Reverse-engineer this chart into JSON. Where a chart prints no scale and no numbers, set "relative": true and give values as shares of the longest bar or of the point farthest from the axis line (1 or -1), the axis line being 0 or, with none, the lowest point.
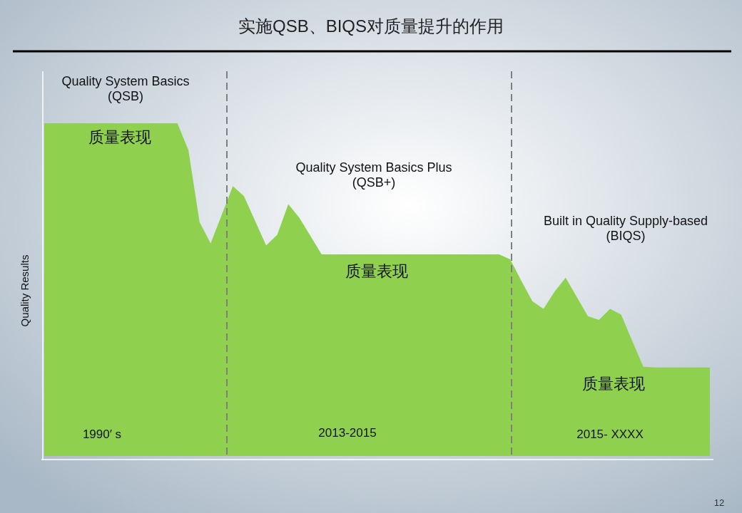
{
  "chart_data": {
    "type": "area",
    "title": "实施QSB、BIQS对质量提升的作用",
    "ylabel": "Quality Results",
    "relative": true,
    "categories": [
      null,
      null,
      null,
      null,
      null,
      null,
      null,
      null,
      null,
      null,
      null,
      null,
      null,
      null,
      null,
      null,
      null,
      null,
      null,
      null,
      null,
      null,
      null,
      null,
      null,
      null,
      null,
      null,
      null,
      null,
      null,
      null,
      null,
      null,
      null,
      null,
      null,
      null,
      null,
      null,
      null,
      null,
      null,
      null,
      null,
      null,
      null,
      null,
      null,
      null,
      null,
      null,
      null,
      null,
      null,
      null,
      null,
      null,
      null,
      null,
      null
    ],
    "series": [
      {
        "color": "#8fd14f",
        "values": [
          1,
          1,
          1,
          1,
          1,
          1,
          1,
          1,
          1,
          1,
          1,
          1,
          1,
          0.919,
          0.703,
          0.639,
          0.725,
          0.811,
          0.781,
          0.707,
          0.633,
          0.665,
          0.757,
          0.716,
          0.661,
          0.606,
          0.606,
          0.606,
          0.606,
          0.606,
          0.606,
          0.606,
          0.606,
          0.606,
          0.606,
          0.606,
          0.606,
          0.606,
          0.606,
          0.606,
          0.606,
          0.606,
          0.591,
          0.527,
          0.465,
          0.442,
          0.494,
          0.536,
          0.478,
          0.42,
          0.409,
          0.442,
          0.425,
          0.346,
          0.268,
          0.266,
          0.266,
          0.266,
          0.266,
          0.266,
          0.266
        ]
      }
    ],
    "annotations": [
      "Quality System Basics\n(QSB)",
      "质量表现",
      "Quality System Basics Plus\n(QSB+)",
      "质量表现",
      "Built in Quality Supply-based\n(BIQS)",
      "质量表现",
      "1990′ s",
      "2013-2015",
      "2015- XXXX",
      "12"
    ]
  }
}
